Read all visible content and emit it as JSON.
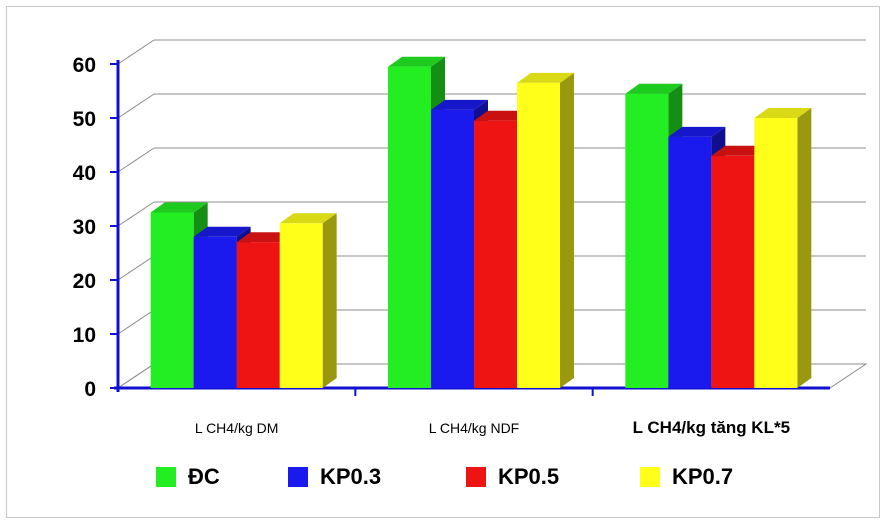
{
  "chart_data": {
    "type": "bar",
    "categories": [
      "L CH4/kg DM",
      "L CH4/kg NDF",
      "L CH4/kg tăng KL*5"
    ],
    "series": [
      {
        "name": "ĐC",
        "color": "#22ee22",
        "values": [
          32.5,
          59.5,
          54.5
        ]
      },
      {
        "name": "KP0.3",
        "color": "#1a1aee",
        "values": [
          28,
          51.5,
          46.5
        ]
      },
      {
        "name": "KP0.5",
        "color": "#ee1414",
        "values": [
          27,
          49.5,
          43
        ]
      },
      {
        "name": "KP0.7",
        "color": "#ffff1a",
        "values": [
          30.5,
          56.5,
          50
        ]
      }
    ],
    "yticks": [
      0,
      10,
      20,
      30,
      40,
      50,
      60
    ],
    "ylim": [
      0,
      60
    ],
    "grid": true,
    "legend_position": "bottom",
    "three_d": true
  }
}
